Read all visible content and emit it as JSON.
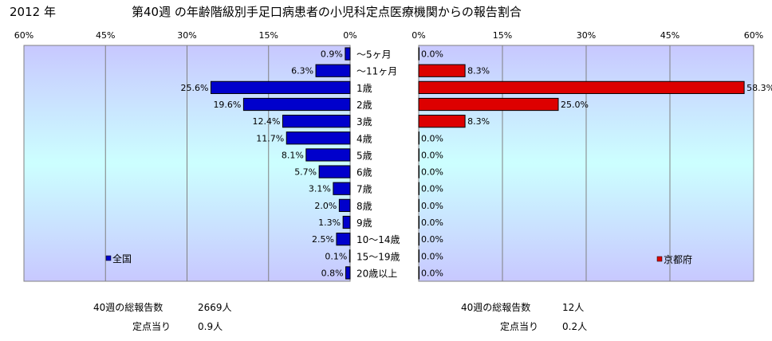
{
  "header": {
    "year": "2012 年",
    "title": "第40週 の年齢階級別手足口病患者の小児科定点医療機関からの報告割合"
  },
  "age_groups": [
    "～5ヶ月",
    "～11ヶ月",
    "1歳",
    "2歳",
    "3歳",
    "4歳",
    "5歳",
    "6歳",
    "7歳",
    "8歳",
    "9歳",
    "10～14歳",
    "15～19歳",
    "20歳以上"
  ],
  "chart_data": [
    {
      "type": "bar",
      "orientation": "horizontal",
      "direction": "right-to-left",
      "categories": [
        "～5ヶ月",
        "～11ヶ月",
        "1歳",
        "2歳",
        "3歳",
        "4歳",
        "5歳",
        "6歳",
        "7歳",
        "8歳",
        "9歳",
        "10～14歳",
        "15～19歳",
        "20歳以上"
      ],
      "series": [
        {
          "name": "全国",
          "color": "#0000cc",
          "values": [
            0.9,
            6.3,
            25.6,
            19.6,
            12.4,
            11.7,
            8.1,
            5.7,
            3.1,
            2.0,
            1.3,
            2.5,
            0.1,
            0.8
          ],
          "labels": [
            "0.9%",
            "6.3%",
            "25.6%",
            "19.6%",
            "12.4%",
            "11.7%",
            "8.1%",
            "5.7%",
            "3.1%",
            "2.0%",
            "1.3%",
            "2.5%",
            "0.1%",
            "0.8%"
          ]
        }
      ],
      "xlim": [
        0,
        60
      ],
      "ticks": [
        "60%",
        "45%",
        "30%",
        "15%",
        "0%"
      ],
      "grid": true,
      "legend": "bottom-left"
    },
    {
      "type": "bar",
      "orientation": "horizontal",
      "direction": "left-to-right",
      "categories": [
        "～5ヶ月",
        "～11ヶ月",
        "1歳",
        "2歳",
        "3歳",
        "4歳",
        "5歳",
        "6歳",
        "7歳",
        "8歳",
        "9歳",
        "10～14歳",
        "15～19歳",
        "20歳以上"
      ],
      "series": [
        {
          "name": "京都府",
          "color": "#dd0000",
          "values": [
            0.0,
            8.3,
            58.3,
            25.0,
            8.3,
            0.0,
            0.0,
            0.0,
            0.0,
            0.0,
            0.0,
            0.0,
            0.0,
            0.0
          ],
          "labels": [
            "0.0%",
            "8.3%",
            "58.3%",
            "25.0%",
            "8.3%",
            "0.0%",
            "0.0%",
            "0.0%",
            "0.0%",
            "0.0%",
            "0.0%",
            "0.0%",
            "0.0%",
            "0.0%"
          ]
        }
      ],
      "xlim": [
        0,
        60
      ],
      "ticks": [
        "0%",
        "15%",
        "30%",
        "45%",
        "60%"
      ],
      "grid": true,
      "legend": "bottom-right"
    }
  ],
  "summary": {
    "national": {
      "total_label": "40週の総報告数",
      "total_value": "2669人",
      "per_label": "定点当り",
      "per_value": "0.9人"
    },
    "kyoto": {
      "total_label": "40週の総報告数",
      "total_value": "12人",
      "per_label": "定点当り",
      "per_value": "0.2人"
    }
  }
}
